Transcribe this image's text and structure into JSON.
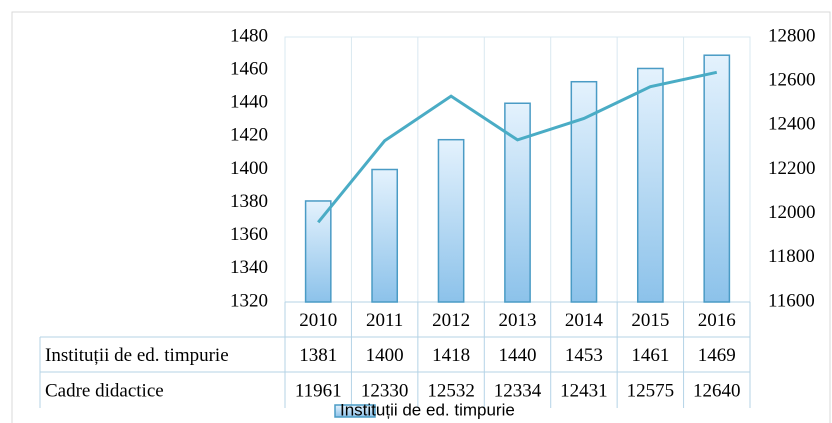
{
  "chart_data": {
    "type": "bar_line",
    "categories": [
      "2010",
      "2011",
      "2012",
      "2013",
      "2014",
      "2015",
      "2016"
    ],
    "series": [
      {
        "name": "Instituții de ed. timpurie",
        "type": "bar",
        "color": "#4a9bc5",
        "values": [
          1381,
          1400,
          1418,
          1440,
          1453,
          1461,
          1469
        ]
      },
      {
        "name": "Cadre didactice",
        "type": "line",
        "axis": "y2",
        "color": "#4aacc5",
        "values": [
          11961,
          12330,
          12532,
          12334,
          12431,
          12575,
          12640
        ]
      }
    ],
    "ylim": [
      1320,
      1480
    ],
    "yticks": [
      1320,
      1340,
      1360,
      1380,
      1400,
      1420,
      1440,
      1460,
      1480
    ],
    "y2lim": [
      11600,
      12800
    ],
    "y2ticks": [
      11600,
      11800,
      12000,
      12200,
      12400,
      12600,
      12800
    ],
    "legend": "bottom",
    "legend_series": [
      0
    ]
  }
}
